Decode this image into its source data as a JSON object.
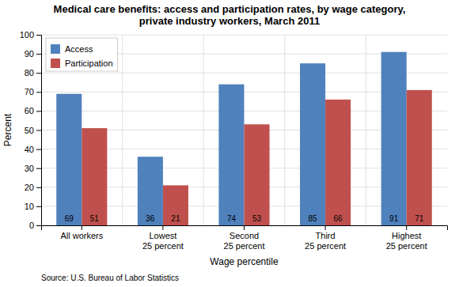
{
  "chart_data": {
    "type": "bar",
    "title": "Medical care benefits: access and participation rates, by wage category,\nprivate industry workers, March 2011",
    "categories": [
      "All workers",
      "Lowest\n25 percent",
      "Second\n25 percent",
      "Third\n25 percent",
      "Highest\n25 percent"
    ],
    "series": [
      {
        "name": "Access",
        "color": "#4F81BD",
        "values": [
          69,
          36,
          74,
          85,
          91
        ]
      },
      {
        "name": "Participation",
        "color": "#C0504D",
        "values": [
          51,
          21,
          53,
          66,
          71
        ]
      }
    ],
    "xlabel": "Wage percentile",
    "ylabel": "Percent",
    "ylim": [
      0,
      100
    ],
    "yticks": [
      0,
      10,
      20,
      30,
      40,
      50,
      60,
      70,
      80,
      90,
      100
    ],
    "grid": true,
    "legend": "upper left",
    "data_labels": true,
    "source": "Source: U.S. Bureau of Labor Statistics"
  }
}
